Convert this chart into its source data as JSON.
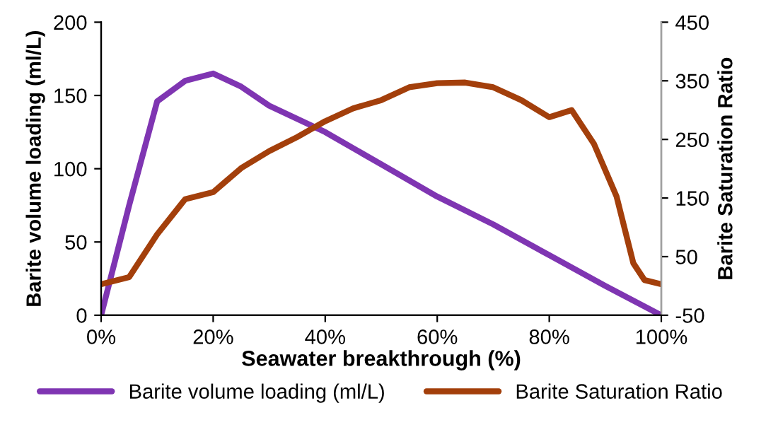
{
  "chart_data": {
    "type": "line",
    "xlabel": "Seawater breakthrough (%)",
    "ylabel": "Barite volume loading (ml/L)",
    "y2label": "Barite Saturation Ratio",
    "xlim": [
      0,
      100
    ],
    "xticks": [
      {
        "value": 0,
        "label": "0%"
      },
      {
        "value": 20,
        "label": "20%"
      },
      {
        "value": 40,
        "label": "40%"
      },
      {
        "value": 60,
        "label": "60%"
      },
      {
        "value": 80,
        "label": "80%"
      },
      {
        "value": 100,
        "label": "100%"
      }
    ],
    "ylim": [
      0,
      200
    ],
    "yticks": [
      0,
      50,
      100,
      150,
      200
    ],
    "y2lim": [
      -50,
      450
    ],
    "y2ticks": [
      -50,
      50,
      150,
      250,
      350,
      450
    ],
    "legend": "bottom",
    "grid": false,
    "marker": "none",
    "line_style": "solid",
    "series": [
      {
        "name": "Barite volume loading (ml/L)",
        "color": "#7f35b2",
        "x": [
          0,
          5,
          10,
          15,
          20,
          25,
          30,
          40,
          50,
          60,
          70,
          80,
          90,
          100
        ],
        "values": [
          0,
          75,
          146,
          160,
          165,
          156,
          143,
          125,
          103,
          81,
          62,
          41,
          20,
          0
        ]
      },
      {
        "name": "Barite Saturation Ratio",
        "color": "#a33f0b",
        "axis": "y2",
        "x": [
          0,
          5,
          10,
          15,
          20,
          25,
          30,
          35,
          40,
          45,
          50,
          55,
          60,
          65,
          70,
          75,
          80,
          84,
          88,
          92,
          95,
          97,
          100
        ],
        "values": [
          3,
          15,
          88,
          148,
          160,
          201,
          230,
          254,
          281,
          303,
          317,
          339,
          346,
          347,
          339,
          317,
          288,
          300,
          242,
          153,
          39,
          10,
          3
        ]
      }
    ]
  }
}
